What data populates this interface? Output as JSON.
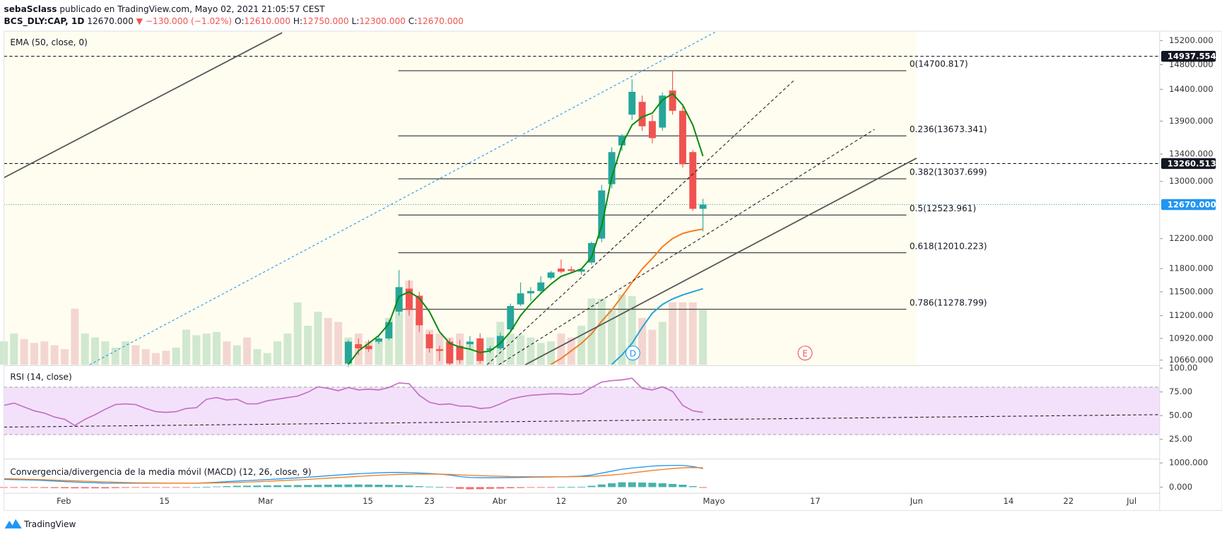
{
  "header": {
    "author": "sebaSclass",
    "published": "publicado en TradingView.com, Mayo 02, 2021 21:05:57 CEST",
    "symbol": "BCS_DLY:CAP, 1D",
    "last": "12670.000",
    "change": "▼ −130.000 (−1.02%)",
    "o_label": "O:",
    "o": "12610.000",
    "h_label": "H:",
    "h": "12750.000",
    "l_label": "L:",
    "l": "12300.000",
    "c_label": "C:",
    "c": "12670.000"
  },
  "footer": {
    "brand": "TradingView"
  },
  "markers": [
    "D",
    "E"
  ],
  "chart_data": [
    {
      "type": "candlestick",
      "title": "EMA (50, close, 0)",
      "log_scale": true,
      "ylim": [
        10605,
        15360
      ],
      "yticks": [
        {
          "value": 15200,
          "label": "15200.000"
        },
        {
          "value": 14800,
          "label": "14800.000"
        },
        {
          "value": 14400,
          "label": "14400.000"
        },
        {
          "value": 13900,
          "label": "13900.000"
        },
        {
          "value": 13400,
          "label": "13400.000"
        },
        {
          "value": 13000,
          "label": "13000.000"
        },
        {
          "value": 12200,
          "label": "12200.000"
        },
        {
          "value": 11800,
          "label": "11800.000"
        },
        {
          "value": 11500,
          "label": "11500.000"
        },
        {
          "value": 11200,
          "label": "11200.000"
        },
        {
          "value": 10920,
          "label": "10920.000"
        },
        {
          "value": 10660,
          "label": "10660.000"
        }
      ],
      "time_axis_labels": [
        "Feb",
        "15",
        "Mar",
        "15",
        "23",
        "Abr",
        "12",
        "20",
        "Mayo",
        "17",
        "Jun",
        "14",
        "22",
        "Jul"
      ],
      "up_color": "#26a69a",
      "down_color": "#ef5350",
      "candles": {
        "open": [
          10620,
          10850,
          10830,
          10880,
          10920,
          11250,
          11540,
          11450,
          10970,
          10790,
          10880,
          10830,
          10850,
          10920,
          10780,
          10800,
          11030,
          11340,
          11480,
          11510,
          11680,
          11800,
          11790,
          11760,
          11880,
          12200,
          12960,
          13530,
          14000,
          14200,
          13900,
          13800,
          14380,
          14060,
          13430,
          12610
        ],
        "high": [
          10900,
          10920,
          10900,
          10950,
          11150,
          11780,
          11650,
          11500,
          11000,
          10830,
          10920,
          10900,
          10950,
          10980,
          10830,
          10990,
          11350,
          11620,
          11560,
          11700,
          11770,
          11920,
          11830,
          11800,
          12160,
          12950,
          13500,
          13700,
          14560,
          14300,
          14000,
          14350,
          14700,
          14150,
          13460,
          12750
        ],
        "low": [
          10580,
          10720,
          10760,
          10850,
          10900,
          11200,
          11200,
          11000,
          10750,
          10650,
          10600,
          10620,
          10800,
          10620,
          10740,
          10780,
          11000,
          11320,
          11380,
          11480,
          11660,
          11740,
          11740,
          11720,
          11850,
          12150,
          12900,
          13450,
          13920,
          13750,
          13560,
          13750,
          14000,
          13200,
          12580,
          12300
        ],
        "close": [
          10880,
          10800,
          10790,
          10920,
          11120,
          11560,
          11270,
          11080,
          10800,
          10770,
          10620,
          10660,
          10880,
          10650,
          10800,
          10950,
          11320,
          11480,
          11510,
          11620,
          11750,
          11760,
          11770,
          11790,
          12140,
          12870,
          13430,
          13680,
          14360,
          13820,
          13640,
          14300,
          14060,
          13250,
          12610,
          12670
        ]
      },
      "series": [
        {
          "color": "#0a8a0a",
          "values": [
            10610,
            10770,
            10860,
            10955,
            11100,
            11440,
            11500,
            11420,
            11250,
            11000,
            10860,
            10815,
            10790,
            10750,
            10770,
            10860,
            11000,
            11200,
            11350,
            11480,
            11600,
            11700,
            11745,
            11795,
            11950,
            12370,
            13060,
            13540,
            13840,
            13965,
            14025,
            14230,
            14330,
            14150,
            13840,
            13370
          ]
        },
        {
          "color": "#f57c1f",
          "values": [
            null,
            null,
            null,
            null,
            null,
            null,
            null,
            null,
            null,
            null,
            null,
            null,
            null,
            null,
            null,
            null,
            null,
            null,
            null,
            null,
            10610,
            10680,
            10770,
            10860,
            10975,
            11130,
            11270,
            11440,
            11620,
            11795,
            11935,
            12090,
            12200,
            12270,
            12305,
            12330
          ]
        },
        {
          "color": "#26a3d9",
          "values": [
            null,
            null,
            null,
            null,
            null,
            null,
            null,
            null,
            null,
            null,
            null,
            null,
            null,
            null,
            null,
            null,
            null,
            null,
            null,
            null,
            null,
            null,
            null,
            null,
            null,
            null,
            10610,
            10720,
            10860,
            11055,
            11230,
            11340,
            11410,
            11460,
            11500,
            11540
          ]
        }
      ],
      "volume": {
        "up_color": "#cfe8cf",
        "down_color": "#f3d6d2",
        "values": [
          30,
          40,
          33,
          28,
          30,
          25,
          20,
          72,
          40,
          35,
          30,
          22,
          30,
          25,
          20,
          15,
          18,
          22,
          45,
          38,
          40,
          42,
          30,
          25,
          35,
          20,
          15,
          30,
          40,
          80,
          50,
          68,
          60,
          55,
          35,
          40,
          30,
          30,
          60,
          85,
          108,
          60,
          45,
          40,
          35,
          40,
          30,
          28,
          35,
          55,
          40,
          38,
          35,
          28,
          30,
          40,
          35,
          50,
          85,
          85,
          70,
          90,
          88,
          60,
          45,
          55,
          80,
          80,
          80,
          70
        ]
      },
      "fib_levels": [
        {
          "value": 14700.817,
          "label": "0(14700.817)"
        },
        {
          "value": 13673.341,
          "label": "0.236(13673.341)"
        },
        {
          "value": 13037.699,
          "label": "0.382(13037.699)"
        },
        {
          "value": 12523.961,
          "label": "0.5(12523.961)"
        },
        {
          "value": 12010.223,
          "label": "0.618(12010.223)"
        },
        {
          "value": 11278.799,
          "label": "0.786(11278.799)"
        }
      ],
      "price_markers": [
        {
          "value": 14937.554,
          "label": "14937.554",
          "color": "#131722"
        },
        {
          "value": 13260.513,
          "label": "13260.513",
          "color": "#131722"
        },
        {
          "value": 12670,
          "label": "12670.000",
          "color": "#2196f3"
        }
      ]
    },
    {
      "type": "line",
      "title": "RSI (14, close)",
      "color": "#c46fc4",
      "band": [
        30,
        80
      ],
      "band_color": "#f3e1fb",
      "ylim": [
        5,
        102
      ],
      "yticks": [
        {
          "value": 100,
          "label": "100.00"
        },
        {
          "value": 75,
          "label": "75.00"
        },
        {
          "value": 50,
          "label": "50.00"
        },
        {
          "value": 25,
          "label": "25.00"
        }
      ],
      "values": [
        60.8,
        63.2,
        59.1,
        55.1,
        52.6,
        48.5,
        46.1,
        39.5,
        46.1,
        51.0,
        56.7,
        61.6,
        62.4,
        61.6,
        57.5,
        54.2,
        53.4,
        54.2,
        57.5,
        58.3,
        67.3,
        69.0,
        66.5,
        67.3,
        62.4,
        62.4,
        65.7,
        67.3,
        69.0,
        70.6,
        74.7,
        80.4,
        78.8,
        76.3,
        79.6,
        77.1,
        77.9,
        77.1,
        79.6,
        84.5,
        83.7,
        71.4,
        64.1,
        61.6,
        62.4,
        60.0,
        60.0,
        57.5,
        58.3,
        62.4,
        67.3,
        69.8,
        71.4,
        72.2,
        73.0,
        73.0,
        72.2,
        73.0,
        79.6,
        85.3,
        86.9,
        87.7,
        89.4,
        78.8,
        77.1,
        80.4,
        75.5,
        60.8,
        55.1,
        53.4
      ]
    },
    {
      "type": "macd",
      "title": "Convergencia/divergencia de la media móvil (MACD) (12, 26, close, 9)",
      "ylim": [
        -226,
        1129
      ],
      "yticks": [
        {
          "value": 1000,
          "label": "1000.000"
        },
        {
          "value": 0,
          "label": "0.000"
        }
      ],
      "series": [
        {
          "color": "#2196f3",
          "values": [
            320,
            310,
            300,
            290,
            270,
            250,
            230,
            210,
            195,
            180,
            165,
            160,
            160,
            160,
            160,
            160,
            160,
            160,
            160,
            165,
            180,
            200,
            225,
            250,
            270,
            290,
            310,
            335,
            360,
            385,
            410,
            440,
            470,
            500,
            530,
            555,
            575,
            590,
            605,
            610,
            600,
            580,
            560,
            540,
            500,
            440,
            400,
            390,
            390,
            390,
            395,
            400,
            410,
            415,
            420,
            430,
            440,
            450,
            500,
            580,
            660,
            740,
            790,
            830,
            870,
            890,
            900,
            900,
            850,
            770
          ]
        },
        {
          "color": "#f57c1f",
          "values": [
            350,
            340,
            330,
            320,
            305,
            290,
            275,
            260,
            245,
            230,
            215,
            200,
            190,
            180,
            175,
            170,
            168,
            165,
            165,
            165,
            168,
            175,
            185,
            195,
            210,
            225,
            240,
            260,
            280,
            300,
            320,
            345,
            370,
            395,
            420,
            445,
            470,
            490,
            510,
            525,
            535,
            540,
            540,
            535,
            525,
            510,
            490,
            475,
            460,
            450,
            440,
            435,
            430,
            428,
            427,
            428,
            430,
            435,
            445,
            470,
            500,
            540,
            590,
            640,
            690,
            730,
            770,
            800,
            810,
            800
          ]
        }
      ],
      "histogram": {
        "up_color": "#26a69a",
        "down_color": "#ef5350",
        "values": [
          -30,
          -30,
          -30,
          -30,
          -35,
          -40,
          -45,
          -50,
          -50,
          -50,
          -50,
          -40,
          -30,
          -20,
          -15,
          -10,
          -8,
          -5,
          -5,
          0,
          12,
          25,
          40,
          55,
          60,
          65,
          70,
          75,
          80,
          85,
          90,
          95,
          100,
          105,
          110,
          110,
          105,
          100,
          95,
          85,
          65,
          40,
          20,
          5,
          -25,
          -70,
          -90,
          -85,
          -70,
          -60,
          -45,
          -35,
          -20,
          -13,
          -7,
          2,
          10,
          15,
          55,
          110,
          160,
          200,
          200,
          190,
          180,
          160,
          130,
          100,
          40,
          -30
        ]
      }
    }
  ]
}
